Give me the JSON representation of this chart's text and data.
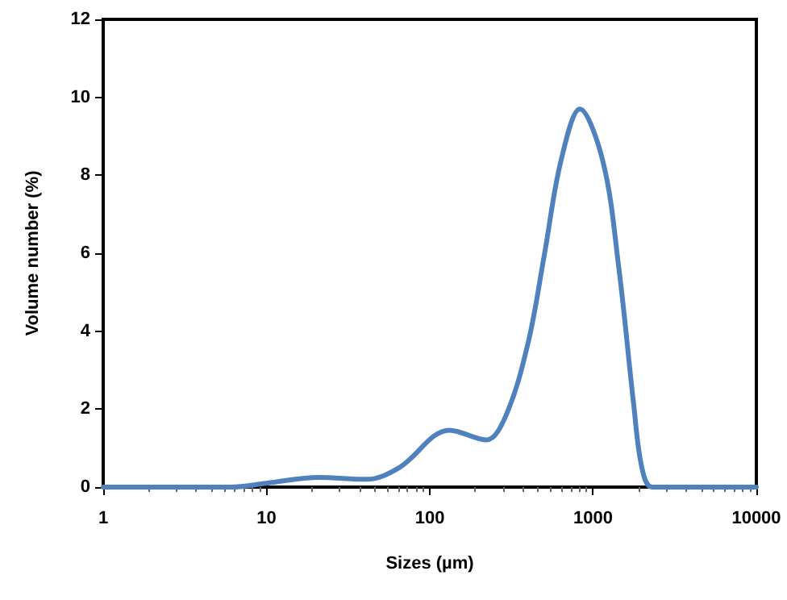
{
  "chart_data": {
    "type": "line",
    "xlabel": "Sizes (µm)",
    "ylabel": "Volume number (%)",
    "log": "x",
    "xlim": [
      1,
      10000
    ],
    "xticks": [
      1,
      10,
      100,
      1000,
      10000
    ],
    "ylim": [
      0,
      12
    ],
    "yticks": [
      0,
      2,
      4,
      6,
      8,
      10,
      12
    ],
    "grid": false,
    "marker": "none",
    "line_style": "solid",
    "series": [
      {
        "color": "#4f81bd",
        "x": [
          1,
          3,
          6,
          10,
          21,
          41,
          65,
          132,
          222,
          295,
          400,
          505,
          634,
          830,
          1150,
          1440,
          1770,
          1990,
          2300,
          5000,
          10000
        ],
        "values": [
          0,
          0,
          0,
          0.1,
          0.25,
          0.2,
          0.5,
          1.46,
          1.21,
          1.87,
          3.7,
          6.0,
          8.35,
          9.7,
          8.35,
          5.6,
          2.15,
          0.5,
          0,
          0,
          0
        ]
      }
    ]
  }
}
